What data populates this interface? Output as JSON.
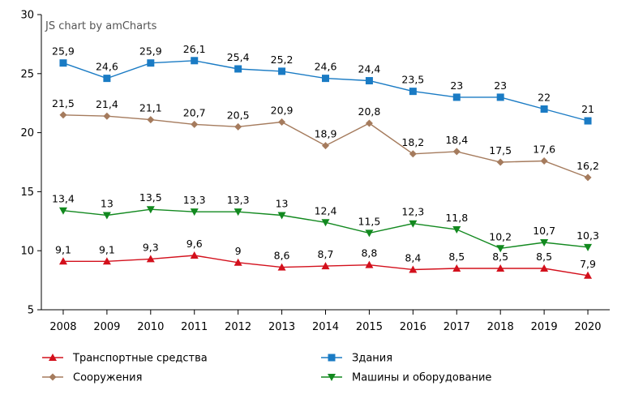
{
  "chart_data": {
    "type": "line",
    "credit": "JS chart by amCharts",
    "title": "",
    "xlabel": "",
    "ylabel": "",
    "ylim": [
      5,
      30
    ],
    "yticks": [
      5,
      10,
      15,
      20,
      25,
      30
    ],
    "grid": false,
    "legend_position": "bottom",
    "categories": [
      "2008",
      "2009",
      "2010",
      "2011",
      "2012",
      "2013",
      "2014",
      "2015",
      "2016",
      "2017",
      "2018",
      "2019",
      "2020"
    ],
    "series": [
      {
        "name": "Здания",
        "color": "#1a7bc4",
        "marker": "square",
        "values": [
          25.9,
          24.6,
          25.9,
          26.1,
          25.4,
          25.2,
          24.6,
          24.4,
          23.5,
          23,
          23,
          22,
          21
        ],
        "labels": [
          "25,9",
          "24,6",
          "25,9",
          "26,1",
          "25,4",
          "25,2",
          "24,6",
          "24,4",
          "23,5",
          "23",
          "23",
          "22",
          "21"
        ]
      },
      {
        "name": "Сооружения",
        "color": "#a57b5d",
        "marker": "diamond",
        "values": [
          21.5,
          21.4,
          21.1,
          20.7,
          20.5,
          20.9,
          18.9,
          20.8,
          18.2,
          18.4,
          17.5,
          17.6,
          16.2
        ],
        "labels": [
          "21,5",
          "21,4",
          "21,1",
          "20,7",
          "20,5",
          "20,9",
          "18,9",
          "20,8",
          "18,2",
          "18,4",
          "17,5",
          "17,6",
          "16,2"
        ]
      },
      {
        "name": "Машины и оборудование",
        "color": "#12891f",
        "marker": "triangle-down",
        "values": [
          13.4,
          13,
          13.5,
          13.3,
          13.3,
          13,
          12.4,
          11.5,
          12.3,
          11.8,
          10.2,
          10.7,
          10.3
        ],
        "labels": [
          "13,4",
          "13",
          "13,5",
          "13,3",
          "13,3",
          "13",
          "12,4",
          "11,5",
          "12,3",
          "11,8",
          "10,2",
          "10,7",
          "10,3"
        ]
      },
      {
        "name": "Транспортные средства",
        "color": "#d3101c",
        "marker": "triangle-up",
        "values": [
          9.1,
          9.1,
          9.3,
          9.6,
          9,
          8.6,
          8.7,
          8.8,
          8.4,
          8.5,
          8.5,
          8.5,
          7.9
        ],
        "labels": [
          "9,1",
          "9,1",
          "9,3",
          "9,6",
          "9",
          "8,6",
          "8,7",
          "8,8",
          "8,4",
          "8,5",
          "8,5",
          "8,5",
          "7,9"
        ]
      }
    ],
    "legend": [
      {
        "series": "Транспортные средства",
        "label": "Транспортные средства"
      },
      {
        "series": "Здания",
        "label": "Здания"
      },
      {
        "series": "Сооружения",
        "label": "Сооружения"
      },
      {
        "series": "Машины и оборудование",
        "label": "Машины и оборудование"
      }
    ]
  }
}
